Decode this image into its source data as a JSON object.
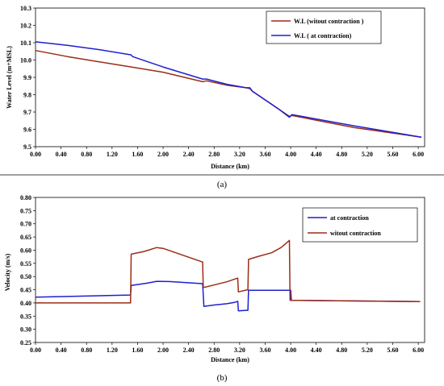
{
  "colors": {
    "brown": "#9b2d16",
    "blue": "#1f1fcf",
    "axis": "#000000"
  },
  "chart_data": [
    {
      "type": "line",
      "caption": "(a)",
      "xlabel": "Distance (km)",
      "ylabel": "Water Level (m+MSL)",
      "xlim": [
        0,
        6.1
      ],
      "ylim": [
        9.5,
        10.3
      ],
      "xticks": [
        "0.00",
        "0.40",
        "0.80",
        "1.20",
        "1.60",
        "2.00",
        "2.40",
        "2.80",
        "3.20",
        "3.60",
        "4.00",
        "4.40",
        "4.80",
        "5.20",
        "5.60",
        "6.00"
      ],
      "yticks": [
        "9.5",
        "9.6",
        "9.7",
        "9.8",
        "9.9",
        "10.0",
        "10.1",
        "10.2",
        "10.3"
      ],
      "legend_position": "top-right",
      "series": [
        {
          "name": "W.L (witout contraction )",
          "color_key": "brown",
          "points": [
            [
              0.0,
              10.055
            ],
            [
              0.5,
              10.02
            ],
            [
              1.0,
              9.99
            ],
            [
              1.5,
              9.96
            ],
            [
              2.0,
              9.93
            ],
            [
              2.62,
              9.875
            ],
            [
              2.68,
              9.88
            ],
            [
              3.0,
              9.855
            ],
            [
              3.3,
              9.84
            ],
            [
              3.36,
              9.835
            ],
            [
              3.4,
              9.82
            ],
            [
              3.6,
              9.77
            ],
            [
              3.8,
              9.72
            ],
            [
              3.98,
              9.675
            ],
            [
              4.02,
              9.68
            ],
            [
              5.0,
              9.61
            ],
            [
              6.05,
              9.555
            ]
          ]
        },
        {
          "name": "W.L ( at contraction)",
          "color_key": "blue",
          "points": [
            [
              0.0,
              10.105
            ],
            [
              0.5,
              10.085
            ],
            [
              1.0,
              10.06
            ],
            [
              1.5,
              10.03
            ],
            [
              1.52,
              10.02
            ],
            [
              2.0,
              9.96
            ],
            [
              2.62,
              9.89
            ],
            [
              2.68,
              9.89
            ],
            [
              3.0,
              9.86
            ],
            [
              3.3,
              9.84
            ],
            [
              3.36,
              9.84
            ],
            [
              3.4,
              9.82
            ],
            [
              3.6,
              9.77
            ],
            [
              3.8,
              9.72
            ],
            [
              3.98,
              9.67
            ],
            [
              4.02,
              9.685
            ],
            [
              5.0,
              9.62
            ],
            [
              6.05,
              9.555
            ]
          ]
        }
      ]
    },
    {
      "type": "line",
      "caption": "(b)",
      "xlabel": "Distance (km)",
      "ylabel": "Velocity (m/s)",
      "xlim": [
        0,
        6.1
      ],
      "ylim": [
        0.25,
        0.8
      ],
      "xticks": [
        "0.00",
        "0.40",
        "0.80",
        "1.20",
        "1.60",
        "2.00",
        "2.40",
        "2.80",
        "3.20",
        "3.60",
        "4.00",
        "4.40",
        "4.80",
        "5.20",
        "5.60",
        "6.00"
      ],
      "yticks": [
        "0.25",
        "0.30",
        "0.35",
        "0.40",
        "0.45",
        "0.50",
        "0.55",
        "0.60",
        "0.65",
        "0.70",
        "0.75",
        "0.80"
      ],
      "legend_position": "top-right",
      "series": [
        {
          "name": "at contraction",
          "color_key": "blue",
          "points": [
            [
              0.0,
              0.422
            ],
            [
              1.49,
              0.43
            ],
            [
              1.5,
              0.466
            ],
            [
              1.75,
              0.475
            ],
            [
              1.9,
              0.482
            ],
            [
              2.1,
              0.481
            ],
            [
              2.62,
              0.473
            ],
            [
              2.64,
              0.387
            ],
            [
              2.8,
              0.392
            ],
            [
              3.0,
              0.397
            ],
            [
              3.12,
              0.402
            ],
            [
              3.17,
              0.406
            ],
            [
              3.18,
              0.37
            ],
            [
              3.3,
              0.372
            ],
            [
              3.33,
              0.372
            ],
            [
              3.34,
              0.448
            ],
            [
              4.0,
              0.448
            ],
            [
              4.01,
              0.41
            ],
            [
              6.03,
              0.405
            ]
          ]
        },
        {
          "name": "witout contraction",
          "color_key": "brown",
          "points": [
            [
              0.0,
              0.4
            ],
            [
              1.49,
              0.4
            ],
            [
              1.5,
              0.585
            ],
            [
              1.7,
              0.595
            ],
            [
              1.9,
              0.61
            ],
            [
              2.0,
              0.607
            ],
            [
              2.62,
              0.555
            ],
            [
              2.63,
              0.458
            ],
            [
              3.0,
              0.48
            ],
            [
              3.17,
              0.494
            ],
            [
              3.18,
              0.442
            ],
            [
              3.33,
              0.45
            ],
            [
              3.34,
              0.565
            ],
            [
              3.5,
              0.577
            ],
            [
              3.7,
              0.59
            ],
            [
              3.85,
              0.61
            ],
            [
              3.98,
              0.637
            ],
            [
              3.99,
              0.41
            ],
            [
              6.03,
              0.405
            ]
          ]
        }
      ]
    }
  ]
}
